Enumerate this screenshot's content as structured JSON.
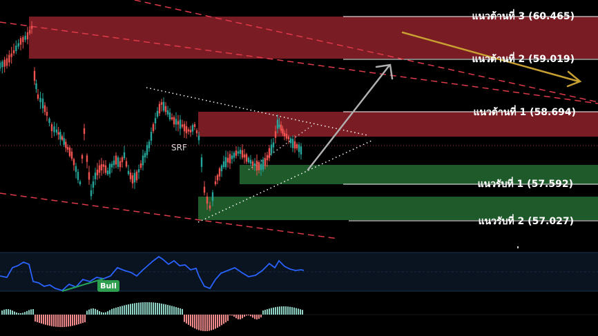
{
  "chart_data": {
    "type": "candlestick",
    "price_range": [
      56.5,
      60.8
    ],
    "resistance_levels": [
      {
        "label": "แนวต้านที่ 3 (60.465)",
        "value": 60.465,
        "zone": [
          59.75,
          60.465
        ]
      },
      {
        "label": "แนวต้านที่ 2 (59.019)",
        "value": 59.019,
        "zone": null
      },
      {
        "label": "แนวต้านที่ 1 (58.694)",
        "value": 58.694,
        "zone": [
          58.3,
          58.694
        ]
      }
    ],
    "support_levels": [
      {
        "label": "แนวรับที่ 1 (57.592)",
        "value": 57.592,
        "zone": [
          57.592,
          57.9
        ]
      },
      {
        "label": "แนวรับที่ 2 (57.027)",
        "value": 57.027,
        "zone": [
          57.027,
          57.4
        ]
      }
    ],
    "annotations": {
      "symbol_label": "SRF",
      "oscillator_badge": "Bull"
    },
    "colors": {
      "up": "#26a69a",
      "down": "#ef5350",
      "resistance_zone": "#7a1c24",
      "support_zone": "#1f5a2a",
      "rsi_line": "#2962ff",
      "forecast_up": "#b0b0b0",
      "forecast_down": "#c8a032",
      "channel": "#e03a4a"
    }
  }
}
